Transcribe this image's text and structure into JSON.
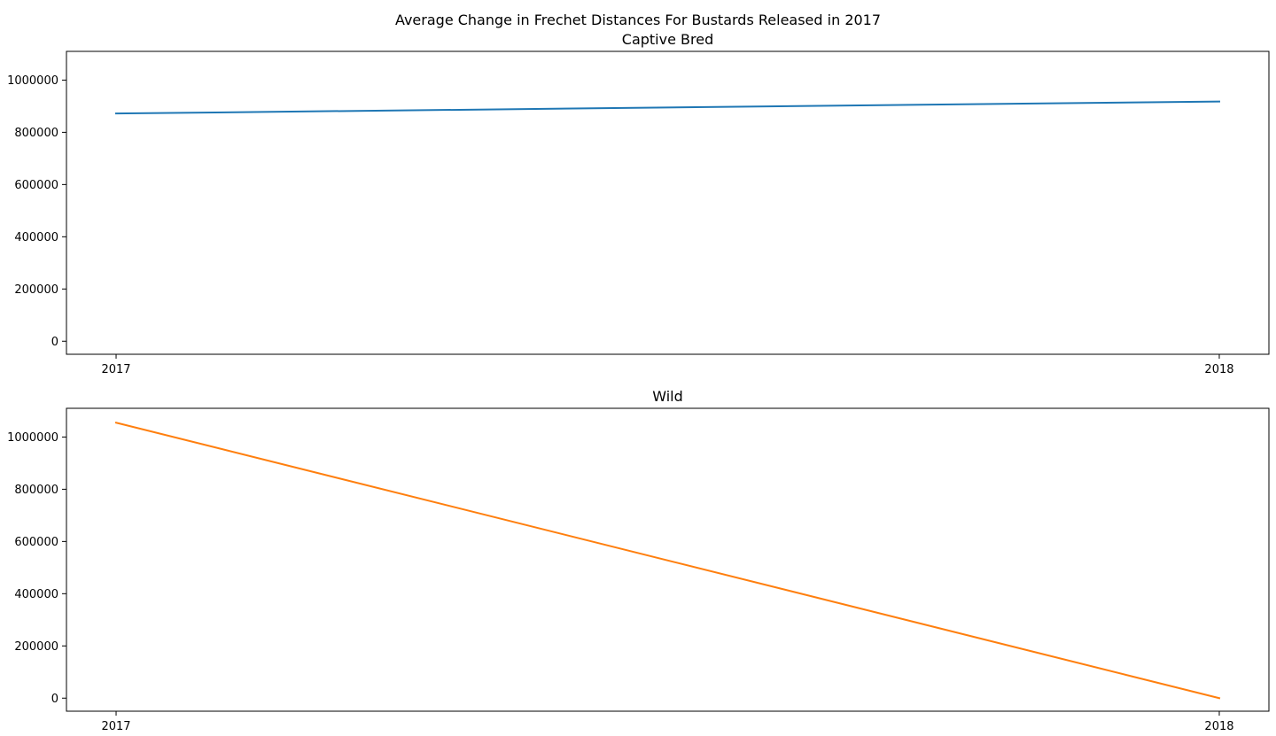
{
  "figure": {
    "suptitle": "Average Change in Frechet Distances For Bustards Released in 2017"
  },
  "chart_data": [
    {
      "type": "line",
      "title": "Captive Bred",
      "xlabel": "",
      "ylabel": "",
      "x": [
        2017,
        2018
      ],
      "x_tick_labels": [
        "2017",
        "2018"
      ],
      "y_ticks": [
        0,
        200000,
        400000,
        600000,
        800000,
        1000000
      ],
      "y_tick_labels": [
        "0",
        "200000",
        "400000",
        "600000",
        "800000",
        "1000000"
      ],
      "ylim": [
        -50000,
        1110000
      ],
      "grid": false,
      "series": [
        {
          "values": [
            872000,
            918000
          ],
          "color": "#1f77b4"
        }
      ]
    },
    {
      "type": "line",
      "title": "Wild",
      "xlabel": "",
      "ylabel": "",
      "x": [
        2017,
        2018
      ],
      "x_tick_labels": [
        "2017",
        "2018"
      ],
      "y_ticks": [
        0,
        200000,
        400000,
        600000,
        800000,
        1000000
      ],
      "y_tick_labels": [
        "0",
        "200000",
        "400000",
        "600000",
        "800000",
        "1000000"
      ],
      "ylim": [
        -50000,
        1110000
      ],
      "grid": false,
      "series": [
        {
          "values": [
            1055000,
            0
          ],
          "color": "#ff7f0e"
        }
      ]
    }
  ]
}
